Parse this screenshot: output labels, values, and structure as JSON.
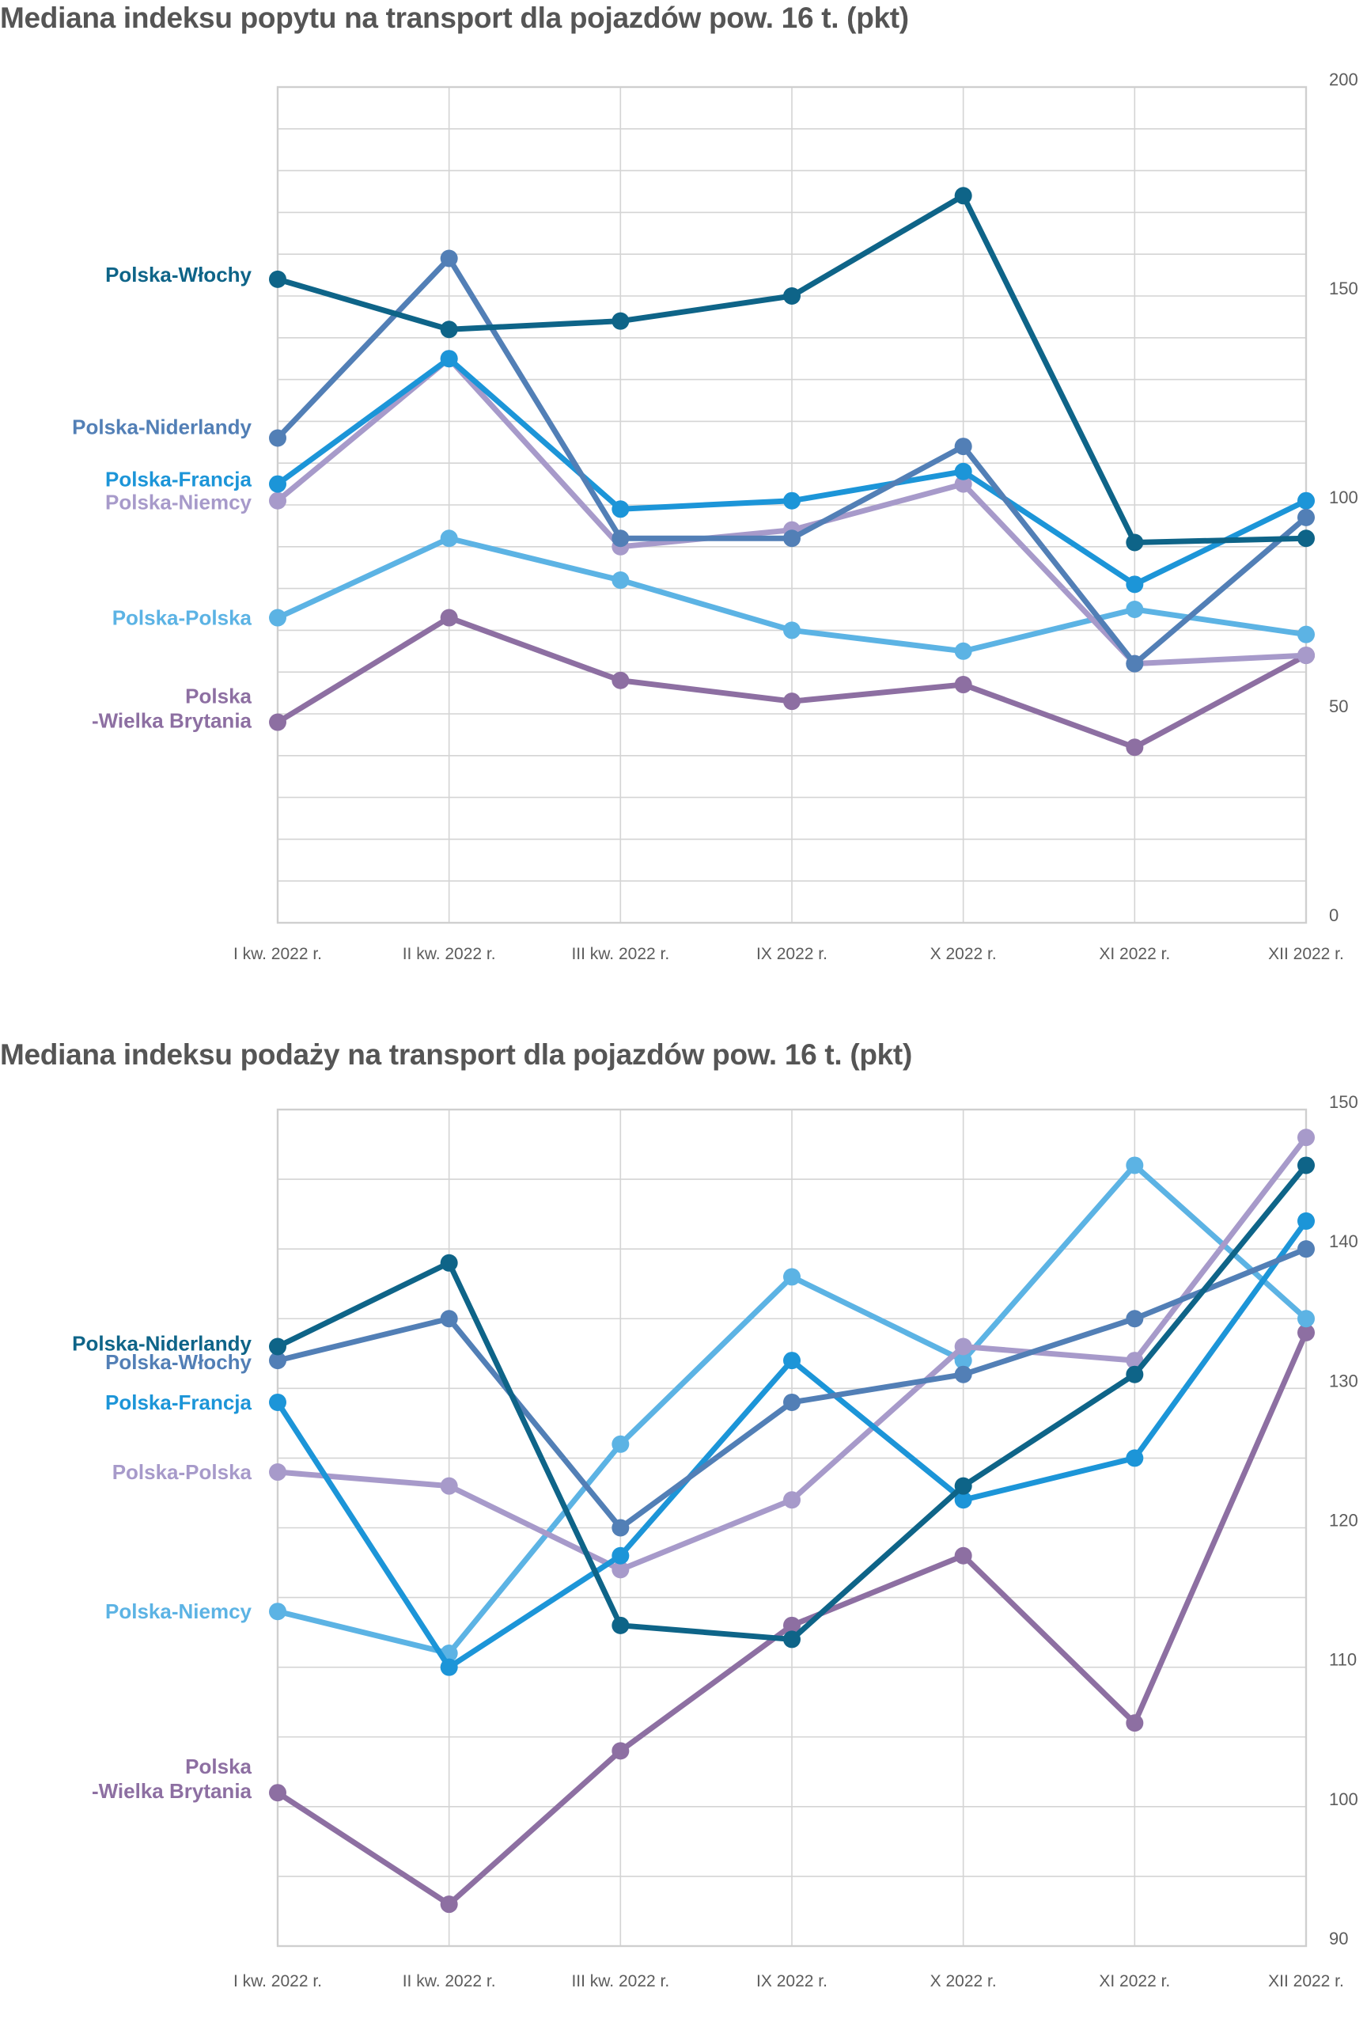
{
  "chart_data": [
    {
      "type": "line",
      "title": "Mediana indeksu popytu na transport dla pojazdów pow. 16 t. (pkt)",
      "xlabel": "",
      "ylabel": "",
      "categories": [
        "I kw. 2022 r.",
        "II kw. 2022  r.",
        "III kw. 2022 r.",
        "IX 2022 r.",
        "X 2022 r.",
        "XI 2022 r.",
        "XII 2022 r."
      ],
      "ylim": [
        0,
        200
      ],
      "y_ticks": [
        0,
        50,
        100,
        150,
        200
      ],
      "y_axis_side": "right",
      "grid_step": 10,
      "grid": true,
      "legend": "left, inline labels at first point",
      "series": [
        {
          "name": "Polska-Włochy",
          "label_lines": [
            "Polska-Włochy"
          ],
          "color": "#0e6488",
          "values": [
            154,
            142,
            144,
            150,
            174,
            91,
            92
          ]
        },
        {
          "name": "Polska-Niderlandy",
          "label_lines": [
            "Polska-Niderlandy"
          ],
          "color": "#527fb6",
          "values": [
            116,
            159,
            92,
            92,
            114,
            62,
            97
          ]
        },
        {
          "name": "Polska-Francja",
          "label_lines": [
            "Polska-Francja"
          ],
          "color": "#1c95d8",
          "values": [
            105,
            135,
            99,
            101,
            108,
            81,
            101
          ]
        },
        {
          "name": "Polska-Niemcy",
          "label_lines": [
            "Polska-Niemcy"
          ],
          "color": "#a79aca",
          "values": [
            101,
            135,
            90,
            94,
            105,
            62,
            64
          ]
        },
        {
          "name": "Polska-Polska",
          "label_lines": [
            "Polska-Polska"
          ],
          "color": "#5cb3e4",
          "values": [
            73,
            92,
            82,
            70,
            65,
            75,
            69
          ]
        },
        {
          "name": "Polska-Wielka Brytania",
          "label_lines": [
            "Polska",
            "-Wielka Brytania"
          ],
          "color": "#8d6fa2",
          "values": [
            48,
            73,
            58,
            53,
            57,
            42,
            64
          ]
        }
      ]
    },
    {
      "type": "line",
      "title": "Mediana indeksu podaży na transport dla pojazdów pow.  16 t. (pkt)",
      "xlabel": "",
      "ylabel": "",
      "categories": [
        "I kw. 2022 r.",
        "II kw. 2022  r.",
        "III kw. 2022 r.",
        "IX 2022 r.",
        "X 2022 r.",
        "XI 2022 r.",
        "XII 2022 r."
      ],
      "ylim": [
        90,
        150
      ],
      "y_ticks": [
        90,
        100,
        110,
        120,
        130,
        140,
        150
      ],
      "y_axis_side": "right",
      "grid_step": 5,
      "grid": true,
      "legend": "left, inline labels at first point",
      "series": [
        {
          "name": "Polska-Niderlandy",
          "label_lines": [
            "Polska-Niderlandy"
          ],
          "color": "#0e6488",
          "values": [
            133,
            139,
            113,
            112,
            123,
            131,
            146
          ]
        },
        {
          "name": "Polska-Włochy",
          "label_lines": [
            "Polska-Włochy"
          ],
          "color": "#527fb6",
          "values": [
            132,
            135,
            120,
            129,
            131,
            135,
            140
          ]
        },
        {
          "name": "Polska-Francja",
          "label_lines": [
            "Polska-Francja"
          ],
          "color": "#1c95d8",
          "values": [
            129,
            110,
            118,
            132,
            122,
            125,
            142
          ]
        },
        {
          "name": "Polska-Polska",
          "label_lines": [
            "Polska-Polska"
          ],
          "color": "#a79aca",
          "values": [
            124,
            123,
            117,
            122,
            133,
            132,
            148
          ]
        },
        {
          "name": "Polska-Niemcy",
          "label_lines": [
            "Polska-Niemcy"
          ],
          "color": "#5cb3e4",
          "values": [
            114,
            111,
            126,
            138,
            132,
            146,
            135
          ]
        },
        {
          "name": "Polska-Wielka Brytania",
          "label_lines": [
            "Polska",
            "-Wielka Brytania"
          ],
          "color": "#8d6fa2",
          "values": [
            101,
            93,
            104,
            113,
            118,
            106,
            134
          ]
        }
      ]
    }
  ]
}
